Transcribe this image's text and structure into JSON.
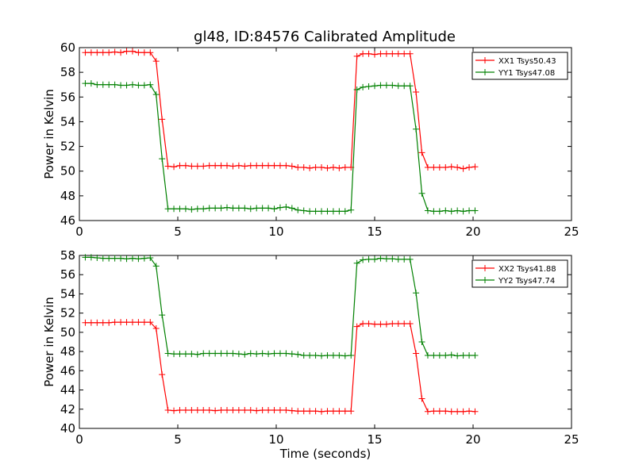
{
  "title": "gl48, ID:84576 Calibrated Amplitude",
  "colors": {
    "XX": "#ff0000",
    "YY": "#008000"
  },
  "chart_data": [
    {
      "type": "line",
      "title": "gl48, ID:84576 Calibrated Amplitude",
      "xlabel": "",
      "ylabel": "Power in Kelvin",
      "xlim": [
        0,
        25
      ],
      "ylim": [
        46,
        60
      ],
      "xticks": [
        0,
        5,
        10,
        15,
        20,
        25
      ],
      "yticks": [
        46,
        48,
        50,
        52,
        54,
        56,
        58,
        60
      ],
      "grid": false,
      "legend": "top-right",
      "marker": "+",
      "x": [
        0.3,
        0.6,
        0.9,
        1.2,
        1.5,
        1.8,
        2.1,
        2.4,
        2.7,
        3.0,
        3.3,
        3.6,
        3.9,
        4.2,
        4.5,
        4.8,
        5.1,
        5.4,
        5.7,
        6.0,
        6.3,
        6.6,
        6.9,
        7.2,
        7.5,
        7.8,
        8.1,
        8.4,
        8.7,
        9.0,
        9.3,
        9.6,
        9.9,
        10.2,
        10.5,
        10.8,
        11.1,
        11.4,
        11.7,
        12.0,
        12.3,
        12.6,
        12.9,
        13.2,
        13.5,
        13.8,
        14.1,
        14.4,
        14.7,
        15.0,
        15.3,
        15.6,
        15.9,
        16.2,
        16.5,
        16.8,
        17.1,
        17.4,
        17.7,
        18.0,
        18.3,
        18.6,
        18.9,
        19.2,
        19.5,
        19.8,
        20.1
      ],
      "series": [
        {
          "name": "XX1 Tsys50.43",
          "color": "#ff0000",
          "values": [
            59.6,
            59.6,
            59.6,
            59.6,
            59.6,
            59.65,
            59.6,
            59.7,
            59.7,
            59.6,
            59.6,
            59.6,
            58.9,
            54.2,
            50.4,
            50.35,
            50.45,
            50.45,
            50.4,
            50.4,
            50.4,
            50.45,
            50.45,
            50.45,
            50.45,
            50.4,
            50.45,
            50.4,
            50.45,
            50.45,
            50.45,
            50.45,
            50.45,
            50.45,
            50.45,
            50.4,
            50.3,
            50.3,
            50.25,
            50.3,
            50.3,
            50.25,
            50.3,
            50.25,
            50.3,
            50.3,
            59.3,
            59.5,
            59.5,
            59.45,
            59.5,
            59.5,
            59.5,
            59.5,
            59.5,
            59.5,
            56.4,
            51.5,
            50.3,
            50.3,
            50.3,
            50.3,
            50.35,
            50.3,
            50.2,
            50.3,
            50.35
          ]
        },
        {
          "name": "YY1 Tsys47.08",
          "color": "#008000",
          "values": [
            57.1,
            57.1,
            57.0,
            57.0,
            57.0,
            57.0,
            56.95,
            56.95,
            57.0,
            56.95,
            56.95,
            57.0,
            56.2,
            51.0,
            46.95,
            46.95,
            46.95,
            46.95,
            46.9,
            46.95,
            46.95,
            47.0,
            47.0,
            47.0,
            47.05,
            47.0,
            47.0,
            47.0,
            46.95,
            47.0,
            47.0,
            47.0,
            46.95,
            47.05,
            47.1,
            47.0,
            46.85,
            46.8,
            46.75,
            46.75,
            46.75,
            46.75,
            46.75,
            46.75,
            46.75,
            46.85,
            56.6,
            56.8,
            56.85,
            56.9,
            56.95,
            56.95,
            56.95,
            56.9,
            56.9,
            56.9,
            53.4,
            48.2,
            46.8,
            46.75,
            46.75,
            46.8,
            46.75,
            46.8,
            46.75,
            46.8,
            46.8
          ]
        }
      ]
    },
    {
      "type": "line",
      "title": "",
      "xlabel": "Time (seconds)",
      "ylabel": "Power in Kelvin",
      "xlim": [
        0,
        25
      ],
      "ylim": [
        40,
        58
      ],
      "xticks": [
        0,
        5,
        10,
        15,
        20,
        25
      ],
      "yticks": [
        40,
        42,
        44,
        46,
        48,
        50,
        52,
        54,
        56,
        58
      ],
      "grid": false,
      "legend": "top-right",
      "marker": "+",
      "x": [
        0.3,
        0.6,
        0.9,
        1.2,
        1.5,
        1.8,
        2.1,
        2.4,
        2.7,
        3.0,
        3.3,
        3.6,
        3.9,
        4.2,
        4.5,
        4.8,
        5.1,
        5.4,
        5.7,
        6.0,
        6.3,
        6.6,
        6.9,
        7.2,
        7.5,
        7.8,
        8.1,
        8.4,
        8.7,
        9.0,
        9.3,
        9.6,
        9.9,
        10.2,
        10.5,
        10.8,
        11.1,
        11.4,
        11.7,
        12.0,
        12.3,
        12.6,
        12.9,
        13.2,
        13.5,
        13.8,
        14.1,
        14.4,
        14.7,
        15.0,
        15.3,
        15.6,
        15.9,
        16.2,
        16.5,
        16.8,
        17.1,
        17.4,
        17.7,
        18.0,
        18.3,
        18.6,
        18.9,
        19.2,
        19.5,
        19.8,
        20.1
      ],
      "series": [
        {
          "name": "XX2 Tsys41.88",
          "color": "#ff0000",
          "values": [
            51.0,
            51.0,
            51.0,
            51.0,
            51.0,
            51.05,
            51.05,
            51.05,
            51.05,
            51.05,
            51.05,
            51.05,
            50.4,
            45.6,
            41.9,
            41.85,
            41.9,
            41.9,
            41.9,
            41.9,
            41.9,
            41.9,
            41.85,
            41.9,
            41.9,
            41.9,
            41.9,
            41.9,
            41.9,
            41.85,
            41.9,
            41.9,
            41.9,
            41.9,
            41.9,
            41.85,
            41.8,
            41.8,
            41.8,
            41.8,
            41.75,
            41.8,
            41.8,
            41.8,
            41.8,
            41.8,
            50.6,
            50.9,
            50.9,
            50.85,
            50.85,
            50.85,
            50.9,
            50.9,
            50.9,
            50.9,
            47.8,
            43.1,
            41.75,
            41.8,
            41.8,
            41.8,
            41.75,
            41.75,
            41.75,
            41.8,
            41.75
          ]
        },
        {
          "name": "YY2 Tsys47.74",
          "color": "#008000",
          "values": [
            57.8,
            57.8,
            57.75,
            57.7,
            57.7,
            57.7,
            57.7,
            57.65,
            57.7,
            57.65,
            57.7,
            57.75,
            56.9,
            51.8,
            47.8,
            47.75,
            47.75,
            47.75,
            47.75,
            47.7,
            47.8,
            47.8,
            47.8,
            47.8,
            47.8,
            47.8,
            47.75,
            47.7,
            47.8,
            47.75,
            47.8,
            47.75,
            47.8,
            47.8,
            47.8,
            47.75,
            47.7,
            47.6,
            47.6,
            47.6,
            47.55,
            47.6,
            47.6,
            47.6,
            47.55,
            47.6,
            57.2,
            57.55,
            57.6,
            57.6,
            57.7,
            57.65,
            57.65,
            57.6,
            57.6,
            57.6,
            54.1,
            49.0,
            47.6,
            47.6,
            47.6,
            47.6,
            47.65,
            47.55,
            47.6,
            47.6,
            47.6
          ]
        }
      ]
    }
  ]
}
